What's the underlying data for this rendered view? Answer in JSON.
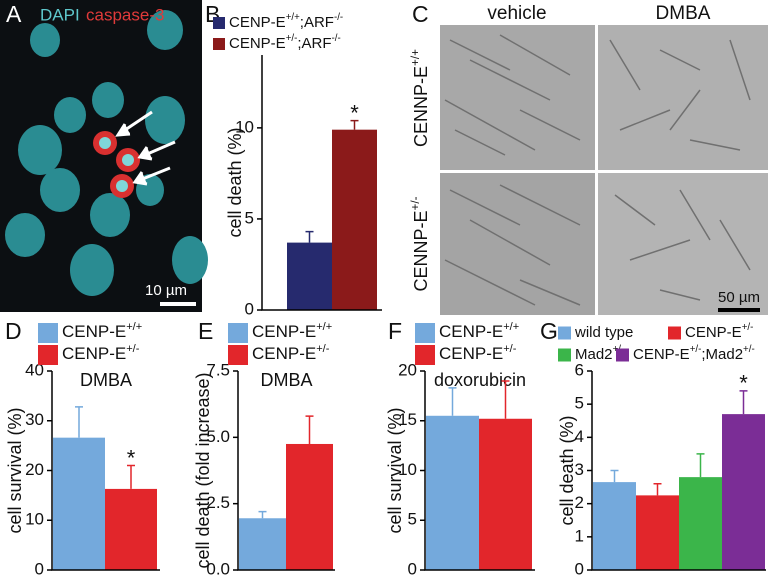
{
  "panel_a": {
    "label": "A",
    "stain_1": "DAPI",
    "stain_2": "caspase-3",
    "scale_bar": "10 µm"
  },
  "panel_c": {
    "label": "C",
    "columns": [
      "vehicle",
      "DMBA"
    ],
    "rows": [
      "CENNP-E+/+",
      "CENNP-E+/-"
    ],
    "scale_bar": "50 µm"
  },
  "chart_data": [
    {
      "type": "bar",
      "panel": "B",
      "y_label": "cell death (%)",
      "annotation": "*",
      "ylim": [
        0,
        14
      ],
      "yticks": [
        0,
        5,
        10
      ],
      "series": [
        {
          "name": "CENP-E+/+;ARF-/-",
          "color": "#262a6e",
          "values": [
            3.7
          ],
          "errors": [
            0.6
          ]
        },
        {
          "name": "CENP-E+/-;ARF-/-",
          "color": "#8b1a1a",
          "values": [
            9.9
          ],
          "errors": [
            0.5
          ]
        }
      ]
    },
    {
      "type": "bar",
      "panel": "D",
      "title": "DMBA",
      "y_label": "cell survival (%)",
      "annotation": "*",
      "ylim": [
        0,
        40
      ],
      "yticks": [
        0,
        10,
        20,
        30,
        40
      ],
      "series": [
        {
          "name": "CENP-E+/+",
          "color": "#74a9dc",
          "values": [
            26.6
          ],
          "errors": [
            6.2
          ]
        },
        {
          "name": "CENP-E+/-",
          "color": "#e2262b",
          "values": [
            16.3
          ],
          "errors": [
            4.7
          ]
        }
      ]
    },
    {
      "type": "bar",
      "panel": "E",
      "title": "DMBA",
      "y_label": "cell death (fold increase)",
      "ylim": [
        0,
        7.5
      ],
      "yticks": [
        {
          "value": 0,
          "label": "0.0"
        },
        2.5,
        {
          "value": 5,
          "label": "5.0"
        },
        7.5
      ],
      "series": [
        {
          "name": "CENP-E+/+",
          "color": "#74a9dc",
          "values": [
            1.95
          ],
          "errors": [
            0.25
          ]
        },
        {
          "name": "CENP-E+/-",
          "color": "#e2262b",
          "values": [
            4.75
          ],
          "errors": [
            1.05
          ]
        }
      ]
    },
    {
      "type": "bar",
      "panel": "F",
      "title": "doxorubicin",
      "y_label": "cell survival (%)",
      "ylim": [
        0,
        20
      ],
      "yticks": [
        0,
        5,
        10,
        15,
        20
      ],
      "series": [
        {
          "name": "CENP-E+/+",
          "color": "#74a9dc",
          "values": [
            15.5
          ],
          "errors": [
            2.8
          ]
        },
        {
          "name": "CENP-E+/-",
          "color": "#e2262b",
          "values": [
            15.2
          ],
          "errors": [
            3.8
          ]
        }
      ]
    },
    {
      "type": "bar",
      "panel": "G",
      "y_label": "cell death (%)",
      "annotation": "*",
      "ylim": [
        0,
        6
      ],
      "yticks": [
        0,
        1,
        2,
        3,
        4,
        5,
        6
      ],
      "series": [
        {
          "name": "wild type",
          "color": "#74a9dc",
          "values": [
            2.65
          ],
          "errors": [
            0.35
          ]
        },
        {
          "name": "CENP-E+/-",
          "color": "#e2262b",
          "values": [
            2.25
          ],
          "errors": [
            0.35
          ]
        },
        {
          "name": "Mad2+/-",
          "color": "#3bb54a",
          "values": [
            2.8
          ],
          "errors": [
            0.7
          ]
        },
        {
          "name": "CENP-E+/-;Mad2+/-",
          "color": "#7b2d96",
          "values": [
            4.7
          ],
          "errors": [
            0.7
          ]
        }
      ]
    }
  ]
}
